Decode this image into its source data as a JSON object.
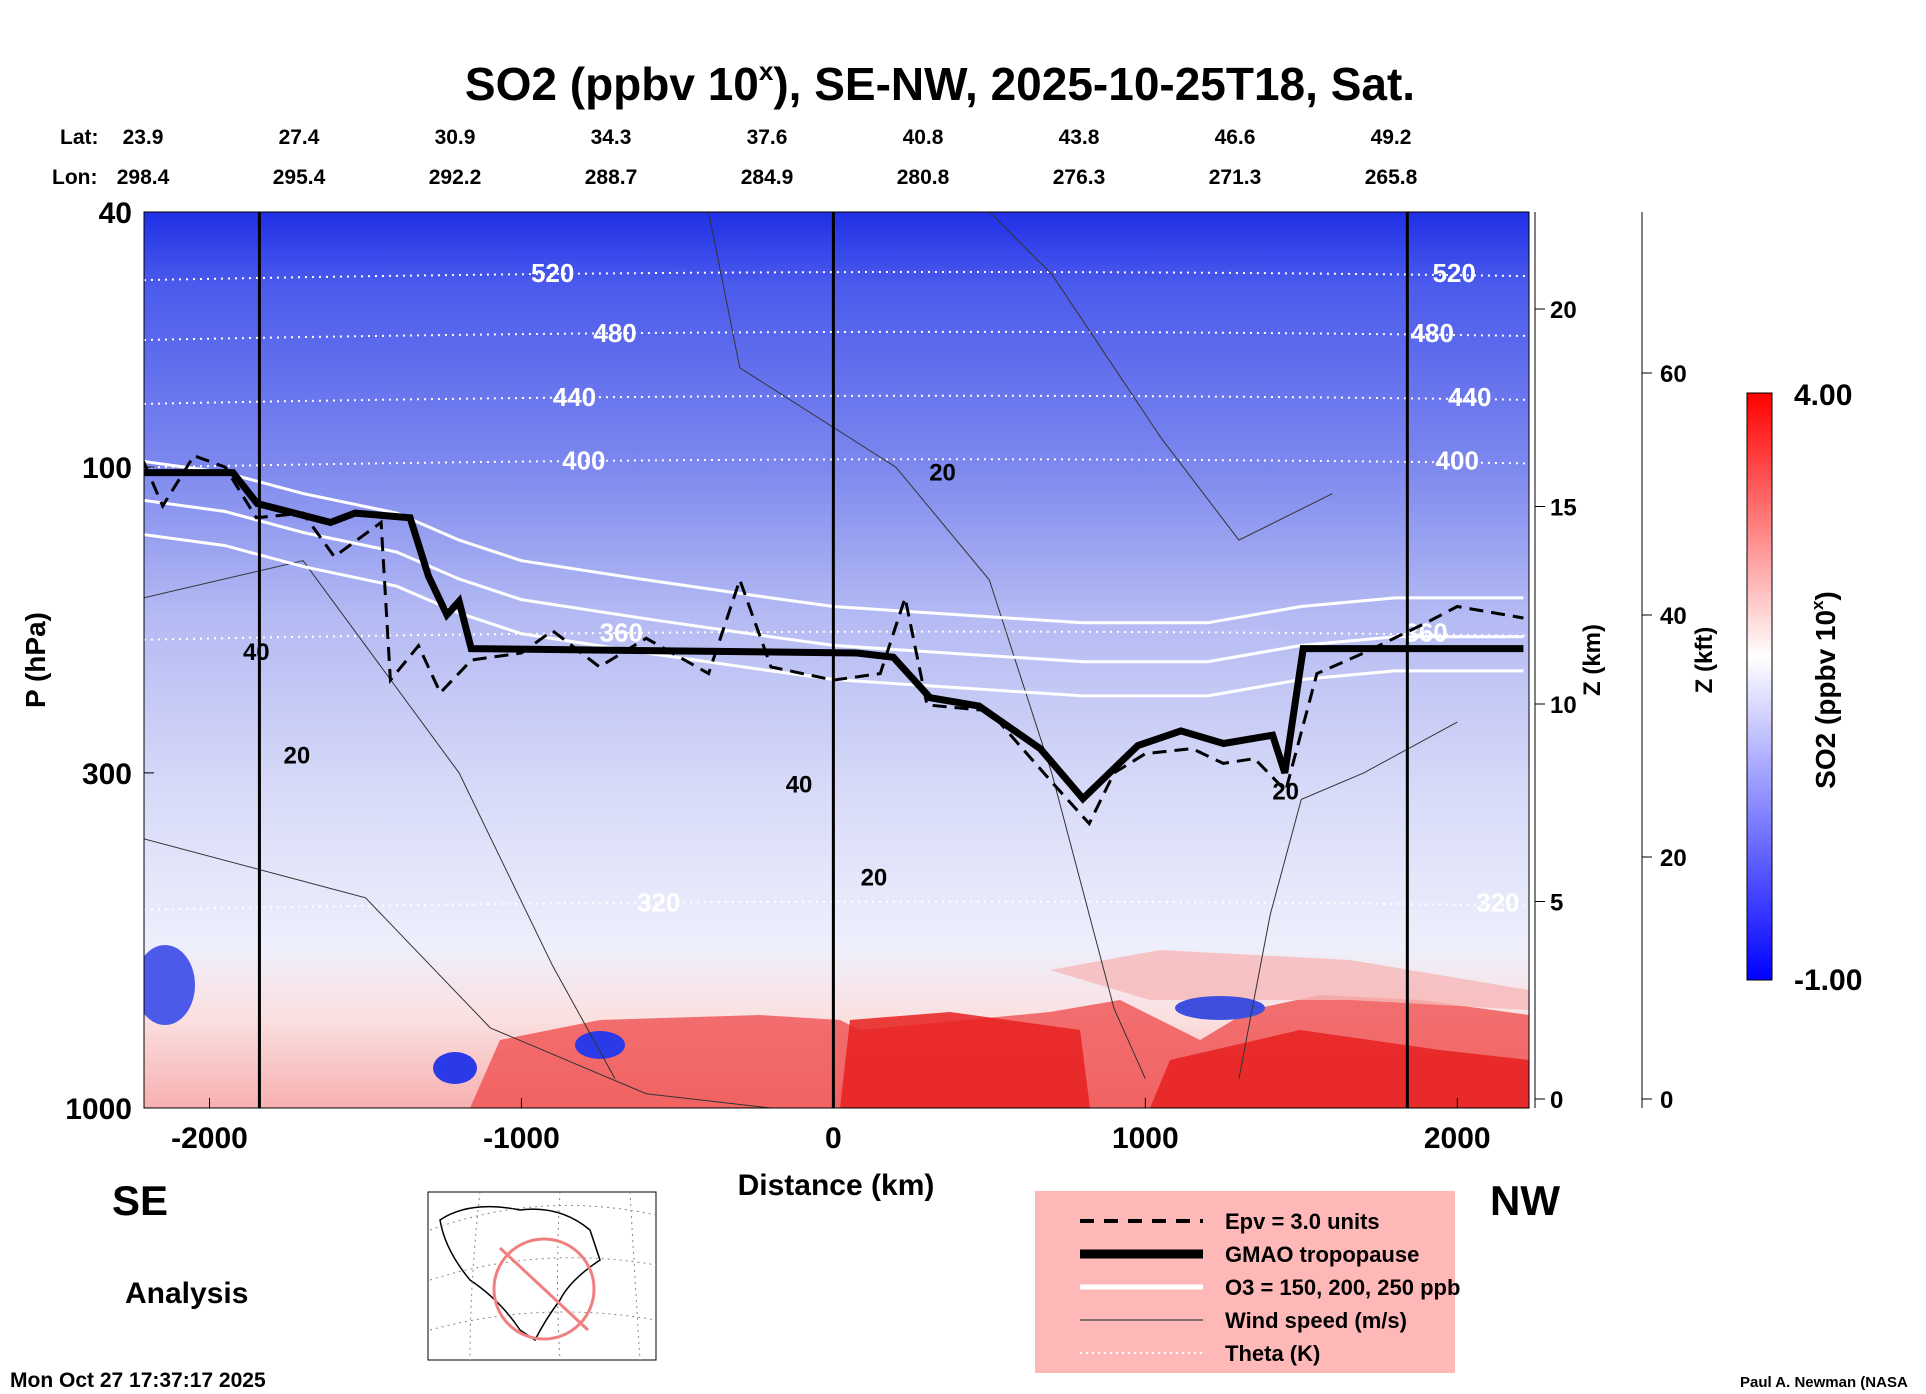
{
  "chart_data": {
    "type": "heatmap",
    "title": "SO2 (ppbv 10",
    "title_sup": "x",
    "title_rest": "), SE-NW, 2025-10-25T18, Sat.",
    "xlabel": "Distance (km)",
    "ylabel": "P (hPa)",
    "xlim": [
      -2210,
      2230
    ],
    "ylim": [
      1000,
      40
    ],
    "yscale": "log",
    "x_ticks": [
      -2000,
      -1000,
      0,
      1000,
      2000
    ],
    "y_ticks": [
      40,
      100,
      300,
      1000
    ],
    "vertical_markers_km": [
      -1840,
      0,
      1840
    ],
    "lat_label": "Lat:",
    "lon_label": "Lon:",
    "lat": [
      "23.9",
      "27.4",
      "30.9",
      "34.3",
      "37.6",
      "40.8",
      "43.8",
      "46.6",
      "49.2"
    ],
    "lon": [
      "298.4",
      "295.4",
      "292.2",
      "288.7",
      "284.9",
      "280.8",
      "276.3",
      "271.3",
      "265.8"
    ],
    "z_km_axis": {
      "label": "Z (km)",
      "ticks": [
        0,
        5,
        10,
        15,
        20
      ]
    },
    "z_kft_axis": {
      "label": "Z (kft)",
      "ticks": [
        0,
        20,
        40,
        60
      ]
    },
    "colorbar": {
      "label": "SO2 (ppbv 10",
      "label_sup": "x",
      "label_rest": ")",
      "max": "4.00",
      "min": "-1.00",
      "colors": [
        "#ff0000",
        "#ffffff",
        "#0000ff"
      ]
    },
    "left_label": "SE",
    "right_label": "NW",
    "analysis_label": "Analysis",
    "timestamp": "Mon Oct 27 17:37:17 2025",
    "credit": "Paul A. Newman (NASA",
    "legend": [
      {
        "label": "Epv = 3.0 units",
        "style": "dashed"
      },
      {
        "label": "GMAO tropopause",
        "style": "thick"
      },
      {
        "label": "O3 = 150, 200, 250 ppb",
        "style": "white"
      },
      {
        "label": "Wind speed (m/s)",
        "style": "thin"
      },
      {
        "label": "Theta (K)",
        "style": "dotted"
      }
    ],
    "tropopause": [
      [
        -2212,
        102
      ],
      [
        -2082,
        102
      ],
      [
        -1925,
        102
      ],
      [
        -1847,
        114
      ],
      [
        -1612,
        122
      ],
      [
        -1533,
        118
      ],
      [
        -1357,
        120
      ],
      [
        -1298,
        148
      ],
      [
        -1239,
        170
      ],
      [
        -1200,
        162
      ],
      [
        -1161,
        192
      ],
      [
        75,
        195
      ],
      [
        192,
        198
      ],
      [
        310,
        229
      ],
      [
        467,
        236
      ],
      [
        663,
        275
      ],
      [
        800,
        329
      ],
      [
        976,
        272
      ],
      [
        1114,
        258
      ],
      [
        1251,
        270
      ],
      [
        1408,
        262
      ],
      [
        1447,
        300
      ],
      [
        1506,
        192
      ],
      [
        2212,
        192
      ]
    ],
    "epv": [
      [
        -2212,
        98
      ],
      [
        -2150,
        115
      ],
      [
        -2050,
        96
      ],
      [
        -1950,
        100
      ],
      [
        -1850,
        120
      ],
      [
        -1700,
        118
      ],
      [
        -1600,
        138
      ],
      [
        -1450,
        122
      ],
      [
        -1420,
        215
      ],
      [
        -1330,
        190
      ],
      [
        -1260,
        225
      ],
      [
        -1160,
        200
      ],
      [
        -1000,
        195
      ],
      [
        -900,
        180
      ],
      [
        -750,
        205
      ],
      [
        -600,
        185
      ],
      [
        -400,
        210
      ],
      [
        -300,
        150
      ],
      [
        -200,
        205
      ],
      [
        0,
        215
      ],
      [
        150,
        210
      ],
      [
        230,
        160
      ],
      [
        300,
        235
      ],
      [
        500,
        240
      ],
      [
        700,
        310
      ],
      [
        820,
        360
      ],
      [
        900,
        300
      ],
      [
        1000,
        280
      ],
      [
        1150,
        275
      ],
      [
        1250,
        290
      ],
      [
        1350,
        285
      ],
      [
        1450,
        320
      ],
      [
        1550,
        210
      ],
      [
        1700,
        195
      ],
      [
        1900,
        175
      ],
      [
        2000,
        165
      ],
      [
        2212,
        172
      ]
    ],
    "ozone": [
      [
        -2212,
        98
      ],
      [
        -1950,
        102
      ],
      [
        -1700,
        110
      ],
      [
        -1400,
        118
      ],
      [
        -1200,
        130
      ],
      [
        -1000,
        140
      ],
      [
        -600,
        150
      ],
      [
        -200,
        160
      ],
      [
        0,
        165
      ],
      [
        400,
        170
      ],
      [
        800,
        175
      ],
      [
        1200,
        175
      ],
      [
        1500,
        165
      ],
      [
        1800,
        160
      ],
      [
        2212,
        160
      ]
    ],
    "theta": [
      {
        "label": "520",
        "p": 50,
        "lx": -900,
        "rx": 1990
      },
      {
        "label": "480",
        "p": 62,
        "lx": -700,
        "rx": 1920
      },
      {
        "label": "440",
        "p": 78,
        "lx": -830,
        "rx": 2040
      },
      {
        "label": "400",
        "p": 98,
        "lx": -800,
        "rx": 2000
      },
      {
        "label": "360",
        "p": 182,
        "lx": -680,
        "rx": 1900
      },
      {
        "label": "320",
        "p": 480,
        "lx": -560,
        "rx": 2130
      }
    ],
    "wind_labels": [
      {
        "label": "20",
        "x": 350,
        "p": 105
      },
      {
        "label": "40",
        "x": -1850,
        "p": 200
      },
      {
        "label": "20",
        "x": -1720,
        "p": 290
      },
      {
        "label": "40",
        "x": -110,
        "p": 322
      },
      {
        "label": "20",
        "x": 130,
        "p": 450
      },
      {
        "label": "20",
        "x": 1450,
        "p": 330
      }
    ]
  }
}
